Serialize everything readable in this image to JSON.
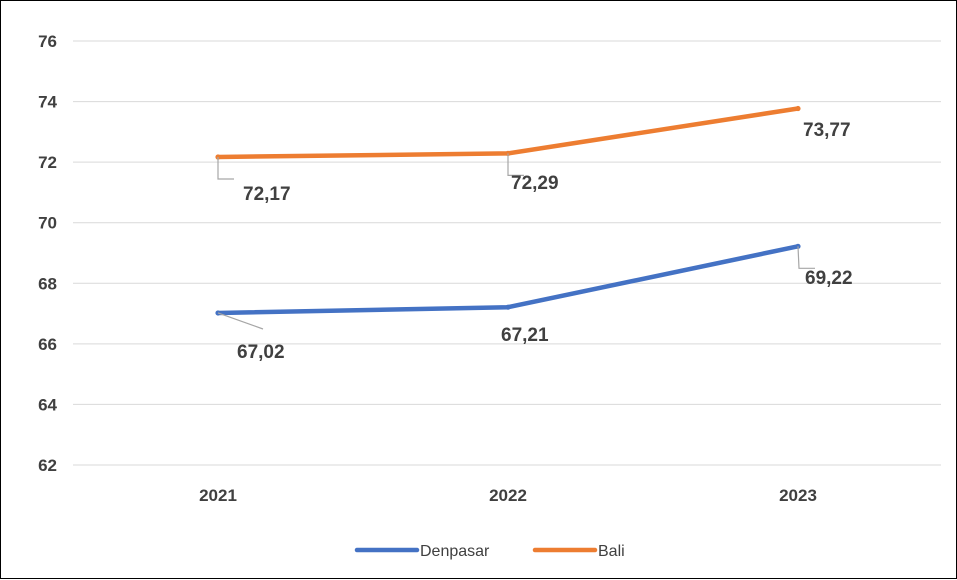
{
  "chart_data": {
    "type": "line",
    "categories": [
      "2021",
      "2022",
      "2023"
    ],
    "series": [
      {
        "name": "Denpasar",
        "values": [
          67.02,
          67.21,
          69.22
        ],
        "labels": [
          "67,02",
          "67,21",
          "69,22"
        ],
        "color": "#4472C4"
      },
      {
        "name": "Bali",
        "values": [
          72.17,
          72.29,
          73.77
        ],
        "labels": [
          "72,17",
          "72,29",
          "73,77"
        ],
        "color": "#ED7D31"
      }
    ],
    "y_ticks": [
      "62",
      "64",
      "66",
      "68",
      "70",
      "72",
      "74",
      "76"
    ],
    "ylim": [
      62,
      76
    ],
    "grid": true,
    "gridline_color": "#D9D9D9",
    "leader_line_color": "#A6A6A6",
    "legend_position": "bottom"
  }
}
